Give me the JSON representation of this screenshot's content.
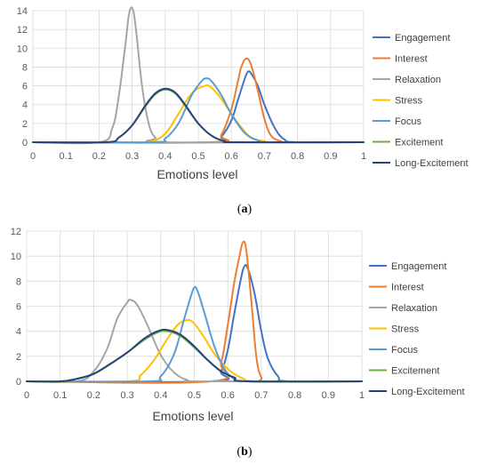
{
  "chart_data": [
    {
      "type": "line",
      "panel_label": "a",
      "xlabel": "Emotions level",
      "ylabel": "",
      "xlim": [
        0,
        1
      ],
      "ylim": [
        0,
        14
      ],
      "x_ticks": [
        "0",
        "0.1",
        "0.2",
        "0.3",
        "0.4",
        "0.5",
        "0.6",
        "0.7",
        "0.8",
        "0.9",
        "1"
      ],
      "y_ticks": [
        "0",
        "2",
        "4",
        "6",
        "8",
        "10",
        "12",
        "14"
      ],
      "grid": true,
      "legend_position": "right",
      "series": [
        {
          "name": "Engagement",
          "color": "#4472C4",
          "x": [
            0,
            0.54,
            0.57,
            0.6,
            0.62,
            0.64,
            0.65,
            0.66,
            0.68,
            0.7,
            0.73,
            0.76,
            0.8,
            1
          ],
          "y": [
            0,
            0,
            0.6,
            2.3,
            4.5,
            6.7,
            7.5,
            7.3,
            6.0,
            4.0,
            1.6,
            0.3,
            0,
            0
          ]
        },
        {
          "name": "Interest",
          "color": "#ED7D31",
          "x": [
            0,
            0.54,
            0.57,
            0.6,
            0.62,
            0.63,
            0.645,
            0.66,
            0.68,
            0.7,
            0.72,
            0.75,
            0.77,
            1
          ],
          "y": [
            0,
            0,
            0.8,
            3.5,
            6.5,
            8.0,
            8.9,
            8.2,
            5.5,
            2.5,
            0.7,
            0.1,
            0,
            0
          ]
        },
        {
          "name": "Relaxation",
          "color": "#A5A5A5",
          "x": [
            0,
            0.2,
            0.24,
            0.26,
            0.28,
            0.29,
            0.3,
            0.31,
            0.33,
            0.35,
            0.37,
            0.4,
            1
          ],
          "y": [
            0,
            0,
            1.5,
            5.0,
            10.5,
            13.5,
            14.3,
            12.5,
            6.0,
            2.0,
            0.5,
            0,
            0
          ]
        },
        {
          "name": "Stress",
          "color": "#FFC000",
          "x": [
            0,
            0.32,
            0.36,
            0.4,
            0.44,
            0.48,
            0.52,
            0.54,
            0.57,
            0.6,
            0.63,
            0.66,
            0.7,
            0.74,
            1
          ],
          "y": [
            0,
            0,
            0.1,
            0.9,
            3.0,
            5.2,
            6.0,
            5.8,
            4.6,
            3.0,
            1.6,
            0.5,
            0.1,
            0,
            0
          ]
        },
        {
          "name": "Focus",
          "color": "#5B9BD5",
          "x": [
            0,
            0.36,
            0.4,
            0.44,
            0.48,
            0.51,
            0.525,
            0.54,
            0.57,
            0.6,
            0.64,
            0.68,
            0.72,
            1
          ],
          "y": [
            0,
            0,
            0.4,
            2.0,
            5.0,
            6.5,
            6.8,
            6.5,
            5.0,
            3.0,
            1.0,
            0.2,
            0,
            0
          ]
        },
        {
          "name": "Excitement",
          "color": "#70AD47",
          "x": [
            0,
            0.22,
            0.26,
            0.3,
            0.34,
            0.37,
            0.4,
            0.43,
            0.46,
            0.5,
            0.54,
            0.58,
            0.62,
            1
          ],
          "y": [
            0,
            0,
            0.5,
            1.8,
            3.8,
            5.1,
            5.6,
            5.2,
            3.9,
            2.0,
            0.7,
            0.1,
            0,
            0
          ]
        },
        {
          "name": "Long-Excitement",
          "color": "#264478",
          "x": [
            0,
            0.22,
            0.26,
            0.3,
            0.34,
            0.37,
            0.4,
            0.43,
            0.46,
            0.5,
            0.54,
            0.58,
            0.62,
            1
          ],
          "y": [
            0,
            0,
            0.5,
            1.8,
            3.9,
            5.2,
            5.7,
            5.3,
            4.0,
            2.0,
            0.7,
            0.1,
            0,
            0
          ]
        }
      ]
    },
    {
      "type": "line",
      "panel_label": "b",
      "xlabel": "Emotions level",
      "ylabel": "",
      "xlim": [
        0,
        1
      ],
      "ylim": [
        0,
        12
      ],
      "x_ticks": [
        "0",
        "0.1",
        "0.2",
        "0.3",
        "0.4",
        "0.5",
        "0.6",
        "0.7",
        "0.8",
        "0.9",
        "1"
      ],
      "y_ticks": [
        "0",
        "2",
        "4",
        "6",
        "8",
        "10",
        "12"
      ],
      "grid": true,
      "legend_position": "right",
      "series": [
        {
          "name": "Engagement",
          "color": "#4472C4",
          "x": [
            0,
            0.55,
            0.58,
            0.6,
            0.62,
            0.64,
            0.65,
            0.66,
            0.68,
            0.7,
            0.72,
            0.75,
            0.78,
            1
          ],
          "y": [
            0,
            0,
            0.8,
            2.5,
            5.5,
            8.3,
            9.2,
            9.0,
            7.0,
            4.0,
            1.8,
            0.4,
            0,
            0
          ]
        },
        {
          "name": "Interest",
          "color": "#ED7D31",
          "x": [
            0,
            0.55,
            0.58,
            0.6,
            0.62,
            0.635,
            0.645,
            0.655,
            0.67,
            0.685,
            0.7,
            0.72,
            1
          ],
          "y": [
            0,
            0,
            1.5,
            4.5,
            8.0,
            10.0,
            11.1,
            10.5,
            6.5,
            2.0,
            0.3,
            0,
            0
          ]
        },
        {
          "name": "Relaxation",
          "color": "#A5A5A5",
          "x": [
            0,
            0.15,
            0.2,
            0.24,
            0.27,
            0.3,
            0.31,
            0.33,
            0.36,
            0.4,
            0.44,
            0.48,
            0.52,
            1
          ],
          "y": [
            0,
            0,
            0.8,
            2.6,
            5.0,
            6.3,
            6.5,
            6.1,
            4.5,
            2.1,
            0.7,
            0.1,
            0,
            0
          ]
        },
        {
          "name": "Stress",
          "color": "#FFC000",
          "x": [
            0,
            0.3,
            0.34,
            0.38,
            0.42,
            0.45,
            0.48,
            0.5,
            0.53,
            0.56,
            0.6,
            0.64,
            0.7,
            1
          ],
          "y": [
            0,
            0,
            0.5,
            1.7,
            3.4,
            4.5,
            4.9,
            4.6,
            3.5,
            2.2,
            1.0,
            0.3,
            0,
            0
          ]
        },
        {
          "name": "Focus",
          "color": "#5B9BD5",
          "x": [
            0,
            0.36,
            0.4,
            0.44,
            0.47,
            0.49,
            0.5,
            0.51,
            0.53,
            0.56,
            0.59,
            0.62,
            0.66,
            1
          ],
          "y": [
            0,
            0,
            0.4,
            2.2,
            5.0,
            6.8,
            7.5,
            7.2,
            5.5,
            2.8,
            1.0,
            0.2,
            0,
            0
          ]
        },
        {
          "name": "Excitement",
          "color": "#70AD47",
          "x": [
            0,
            0.1,
            0.15,
            0.2,
            0.25,
            0.3,
            0.35,
            0.39,
            0.42,
            0.46,
            0.5,
            0.54,
            0.58,
            0.62,
            0.66,
            1
          ],
          "y": [
            0,
            0,
            0.2,
            0.6,
            1.4,
            2.3,
            3.3,
            3.9,
            4.0,
            3.6,
            2.7,
            1.7,
            0.8,
            0.3,
            0,
            0
          ]
        },
        {
          "name": "Long-Excitement",
          "color": "#264478",
          "x": [
            0,
            0.1,
            0.15,
            0.2,
            0.25,
            0.3,
            0.35,
            0.39,
            0.42,
            0.46,
            0.5,
            0.54,
            0.58,
            0.62,
            0.66,
            1
          ],
          "y": [
            0,
            0,
            0.2,
            0.6,
            1.4,
            2.3,
            3.4,
            4.0,
            4.1,
            3.7,
            2.8,
            1.7,
            0.8,
            0.3,
            0,
            0
          ]
        }
      ]
    }
  ]
}
